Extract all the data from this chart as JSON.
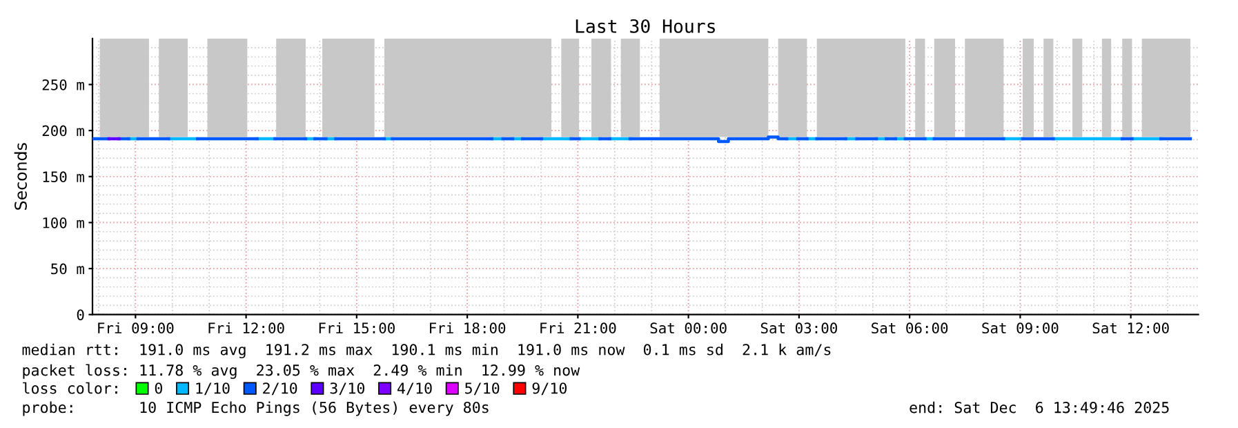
{
  "chart_data": {
    "type": "line",
    "title": "Last 30 Hours",
    "ylabel": "Seconds",
    "legend_title": "loss color:",
    "xlim": [
      "2025-12-05T07:50",
      "2025-12-06T13:50"
    ],
    "xticks": [
      {
        "value": "2025-12-05T09:00",
        "label": "Fri 09:00"
      },
      {
        "value": "2025-12-05T12:00",
        "label": "Fri 12:00"
      },
      {
        "value": "2025-12-05T15:00",
        "label": "Fri 15:00"
      },
      {
        "value": "2025-12-05T18:00",
        "label": "Fri 18:00"
      },
      {
        "value": "2025-12-05T21:00",
        "label": "Fri 21:00"
      },
      {
        "value": "2025-12-06T00:00",
        "label": "Sat 00:00"
      },
      {
        "value": "2025-12-06T03:00",
        "label": "Sat 03:00"
      },
      {
        "value": "2025-12-06T06:00",
        "label": "Sat 06:00"
      },
      {
        "value": "2025-12-06T09:00",
        "label": "Sat 09:00"
      },
      {
        "value": "2025-12-06T12:00",
        "label": "Sat 12:00"
      }
    ],
    "ylim": [
      0,
      300
    ],
    "yticks": [
      0,
      {
        "value": 50,
        "label": "50 m"
      },
      {
        "value": 100,
        "label": "100 m"
      },
      {
        "value": 150,
        "label": "150 m"
      },
      {
        "value": 200,
        "label": "200 m"
      },
      {
        "value": 250,
        "label": "250 m"
      }
    ],
    "grid": true,
    "legend": "bottom",
    "marker": "none",
    "line_style": "solid",
    "series": [
      {
        "name": "0",
        "color": "#00ff00"
      },
      {
        "name": "1/10",
        "color": "#00b8ff",
        "x": [
          "2025-12-05T08:49",
          "2025-12-05T09:04",
          null,
          "2025-12-05T09:54",
          "2025-12-05T10:41",
          null,
          "2025-12-05T12:18",
          "2025-12-05T12:47",
          null,
          "2025-12-05T13:37",
          "2025-12-05T13:52",
          null,
          "2025-12-05T14:10",
          "2025-12-05T14:26",
          null,
          "2025-12-05T15:45",
          "2025-12-05T15:58",
          null,
          "2025-12-05T18:40",
          "2025-12-05T18:58",
          null,
          "2025-12-05T19:14",
          "2025-12-05T19:30",
          null,
          "2025-12-05T20:01",
          "2025-12-05T20:49",
          null,
          "2025-12-05T21:02",
          "2025-12-05T21:36",
          null,
          "2025-12-05T21:52",
          "2025-12-05T22:25",
          null,
          "2025-12-06T02:40",
          "2025-12-06T02:58",
          null,
          "2025-12-06T03:13",
          "2025-12-06T03:29",
          null,
          "2025-12-06T04:16",
          "2025-12-06T04:34",
          null,
          "2025-12-06T05:06",
          "2025-12-06T05:22",
          null,
          "2025-12-06T05:37",
          "2025-12-06T05:53",
          null,
          "2025-12-06T06:25",
          "2025-12-06T06:40",
          null,
          "2025-12-06T08:33",
          "2025-12-06T09:04",
          null,
          "2025-12-06T09:54",
          "2025-12-06T11:46",
          null,
          "2025-12-06T12:02",
          "2025-12-06T12:49"
        ],
        "values": [
          191,
          191,
          null,
          191,
          191,
          null,
          191,
          191,
          null,
          191,
          191,
          null,
          191,
          191,
          null,
          191,
          191,
          null,
          191,
          191,
          null,
          191,
          191,
          null,
          191,
          191,
          null,
          191,
          191,
          null,
          191,
          191,
          null,
          191,
          191,
          null,
          191,
          191,
          null,
          191,
          191,
          null,
          191,
          191,
          null,
          191,
          191,
          null,
          191,
          191,
          null,
          191,
          191,
          null,
          191,
          191,
          null,
          191,
          191
        ]
      },
      {
        "name": "2/10",
        "color": "#0059ff",
        "x": [
          "2025-12-05T07:52",
          "2025-12-05T08:17",
          null,
          "2025-12-05T08:33",
          "2025-12-05T08:49",
          null,
          "2025-12-05T09:04",
          "2025-12-05T09:54",
          null,
          "2025-12-05T10:41",
          "2025-12-05T12:18",
          null,
          "2025-12-05T12:47",
          "2025-12-05T13:37",
          null,
          "2025-12-05T13:52",
          "2025-12-05T14:10",
          null,
          "2025-12-05T14:26",
          "2025-12-05T15:45",
          null,
          "2025-12-05T15:58",
          "2025-12-05T18:40",
          null,
          "2025-12-05T18:58",
          "2025-12-05T19:14",
          null,
          "2025-12-05T19:30",
          "2025-12-05T20:01",
          null,
          "2025-12-05T20:49",
          "2025-12-05T21:02",
          null,
          "2025-12-05T21:36",
          "2025-12-05T21:52",
          null,
          "2025-12-05T22:25",
          "2025-12-06T00:49",
          "2025-12-06T00:49",
          "2025-12-06T01:05",
          "2025-12-06T01:05",
          "2025-12-06T02:10",
          "2025-12-06T02:10",
          "2025-12-06T02:26",
          "2025-12-06T02:26",
          "2025-12-06T02:40",
          null,
          "2025-12-06T02:58",
          "2025-12-06T03:13",
          null,
          "2025-12-06T03:29",
          "2025-12-06T04:16",
          null,
          "2025-12-06T04:34",
          "2025-12-06T05:06",
          null,
          "2025-12-06T05:22",
          "2025-12-06T05:37",
          null,
          "2025-12-06T05:53",
          "2025-12-06T06:25",
          null,
          "2025-12-06T06:40",
          "2025-12-06T08:33",
          null,
          "2025-12-06T09:04",
          "2025-12-06T09:54",
          null,
          "2025-12-06T11:46",
          "2025-12-06T12:02",
          null,
          "2025-12-06T12:49",
          "2025-12-06T13:37"
        ],
        "values": [
          191,
          191,
          null,
          191,
          191,
          null,
          191,
          191,
          null,
          191,
          191,
          null,
          191,
          191,
          null,
          191,
          191,
          null,
          191,
          191,
          null,
          191,
          191,
          null,
          191,
          191,
          null,
          191,
          191,
          null,
          191,
          191,
          null,
          191,
          191,
          null,
          191,
          191,
          188,
          188,
          191,
          191,
          193,
          193,
          191,
          191,
          null,
          191,
          191,
          null,
          191,
          191,
          null,
          191,
          191,
          null,
          191,
          191,
          null,
          191,
          191,
          null,
          191,
          191,
          null,
          191,
          191,
          null,
          191,
          191,
          null,
          191,
          191
        ]
      },
      {
        "name": "3/10",
        "color": "#5e00ff",
        "x": [
          "2025-12-05T08:17",
          "2025-12-05T08:33"
        ],
        "values": [
          191,
          191
        ]
      },
      {
        "name": "4/10",
        "color": "#7e00ff"
      },
      {
        "name": "5/10",
        "color": "#dd00ff"
      },
      {
        "name": "9/10",
        "color": "#ff0000"
      }
    ],
    "bands": [
      {
        "axis": "x",
        "from": "2025-12-05T08:02",
        "to": "2025-12-05T09:22",
        "color": "#c8c8c8"
      },
      {
        "axis": "x",
        "from": "2025-12-05T09:38",
        "to": "2025-12-05T10:25",
        "color": "#c8c8c8"
      },
      {
        "axis": "x",
        "from": "2025-12-05T10:57",
        "to": "2025-12-05T12:02",
        "color": "#c8c8c8"
      },
      {
        "axis": "x",
        "from": "2025-12-05T12:49",
        "to": "2025-12-05T13:37",
        "color": "#c8c8c8"
      },
      {
        "axis": "x",
        "from": "2025-12-05T14:04",
        "to": "2025-12-05T15:29",
        "color": "#c8c8c8"
      },
      {
        "axis": "x",
        "from": "2025-12-05T15:45",
        "to": "2025-12-05T20:17",
        "color": "#c8c8c8"
      },
      {
        "axis": "x",
        "from": "2025-12-05T20:33",
        "to": "2025-12-05T21:02",
        "color": "#c8c8c8"
      },
      {
        "axis": "x",
        "from": "2025-12-05T21:22",
        "to": "2025-12-05T21:54",
        "color": "#c8c8c8"
      },
      {
        "axis": "x",
        "from": "2025-12-05T22:10",
        "to": "2025-12-05T22:41",
        "color": "#c8c8c8"
      },
      {
        "axis": "x",
        "from": "2025-12-05T23:13",
        "to": "2025-12-06T02:10",
        "color": "#c8c8c8"
      },
      {
        "axis": "x",
        "from": "2025-12-06T02:26",
        "to": "2025-12-06T03:13",
        "color": "#c8c8c8"
      },
      {
        "axis": "x",
        "from": "2025-12-06T03:29",
        "to": "2025-12-06T05:53",
        "color": "#c8c8c8"
      },
      {
        "axis": "x",
        "from": "2025-12-06T06:09",
        "to": "2025-12-06T06:25",
        "color": "#c8c8c8"
      },
      {
        "axis": "x",
        "from": "2025-12-06T06:40",
        "to": "2025-12-06T07:14",
        "color": "#c8c8c8"
      },
      {
        "axis": "x",
        "from": "2025-12-06T07:30",
        "to": "2025-12-06T08:33",
        "color": "#c8c8c8"
      },
      {
        "axis": "x",
        "from": "2025-12-06T09:04",
        "to": "2025-12-06T09:22",
        "color": "#c8c8c8"
      },
      {
        "axis": "x",
        "from": "2025-12-06T09:38",
        "to": "2025-12-06T09:54",
        "color": "#c8c8c8"
      },
      {
        "axis": "x",
        "from": "2025-12-06T10:25",
        "to": "2025-12-06T10:41",
        "color": "#c8c8c8"
      },
      {
        "axis": "x",
        "from": "2025-12-06T11:13",
        "to": "2025-12-06T11:28",
        "color": "#c8c8c8"
      },
      {
        "axis": "x",
        "from": "2025-12-06T11:46",
        "to": "2025-12-06T12:02",
        "color": "#c8c8c8"
      },
      {
        "axis": "x",
        "from": "2025-12-06T12:18",
        "to": "2025-12-06T13:37",
        "color": "#c8c8c8"
      }
    ],
    "annotations": [
      "median rtt:  191.0 ms avg  191.2 ms max  190.1 ms min  191.0 ms now  0.1 ms sd  2.1 k am/s",
      "packet loss: 11.78 % avg  23.05 % max  2.49 % min  12.99 % now",
      "probe:       10 ICMP Echo Pings (56 Bytes) every 80s",
      "end: Sat Dec  6 13:49:46 2025"
    ]
  }
}
